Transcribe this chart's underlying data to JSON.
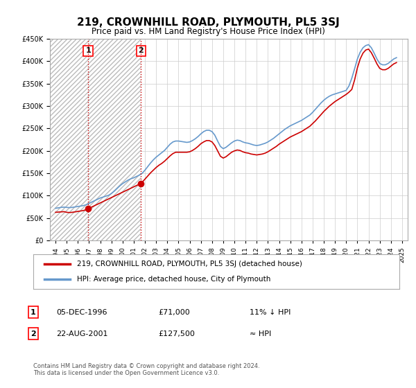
{
  "title": "219, CROWNHILL ROAD, PLYMOUTH, PL5 3SJ",
  "subtitle": "Price paid vs. HM Land Registry's House Price Index (HPI)",
  "transactions": [
    {
      "date": 1996.92,
      "price": 71000,
      "label": "1"
    },
    {
      "date": 2001.64,
      "price": 127500,
      "label": "2"
    }
  ],
  "hpi_dates": [
    1994.0,
    1994.25,
    1994.5,
    1994.75,
    1995.0,
    1995.25,
    1995.5,
    1995.75,
    1996.0,
    1996.25,
    1996.5,
    1996.75,
    1997.0,
    1997.25,
    1997.5,
    1997.75,
    1998.0,
    1998.25,
    1998.5,
    1998.75,
    1999.0,
    1999.25,
    1999.5,
    1999.75,
    2000.0,
    2000.25,
    2000.5,
    2000.75,
    2001.0,
    2001.25,
    2001.5,
    2001.75,
    2002.0,
    2002.25,
    2002.5,
    2002.75,
    2003.0,
    2003.25,
    2003.5,
    2003.75,
    2004.0,
    2004.25,
    2004.5,
    2004.75,
    2005.0,
    2005.25,
    2005.5,
    2005.75,
    2006.0,
    2006.25,
    2006.5,
    2006.75,
    2007.0,
    2007.25,
    2007.5,
    2007.75,
    2008.0,
    2008.25,
    2008.5,
    2008.75,
    2009.0,
    2009.25,
    2009.5,
    2009.75,
    2010.0,
    2010.25,
    2010.5,
    2010.75,
    2011.0,
    2011.25,
    2011.5,
    2011.75,
    2012.0,
    2012.25,
    2012.5,
    2012.75,
    2013.0,
    2013.25,
    2013.5,
    2013.75,
    2014.0,
    2014.25,
    2014.5,
    2014.75,
    2015.0,
    2015.25,
    2015.5,
    2015.75,
    2016.0,
    2016.25,
    2016.5,
    2016.75,
    2017.0,
    2017.25,
    2017.5,
    2017.75,
    2018.0,
    2018.25,
    2018.5,
    2018.75,
    2019.0,
    2019.25,
    2019.5,
    2019.75,
    2020.0,
    2020.25,
    2020.5,
    2020.75,
    2021.0,
    2021.25,
    2021.5,
    2021.75,
    2022.0,
    2022.25,
    2022.5,
    2022.75,
    2023.0,
    2023.25,
    2023.5,
    2023.75,
    2024.0,
    2024.25,
    2024.5
  ],
  "hpi_values": [
    72000,
    73000,
    74000,
    74500,
    74000,
    73500,
    74000,
    75000,
    76000,
    77000,
    78000,
    80000,
    83000,
    86000,
    89000,
    92000,
    95000,
    97000,
    99000,
    101000,
    105000,
    110000,
    116000,
    122000,
    127000,
    131000,
    135000,
    138000,
    140000,
    143000,
    146000,
    150000,
    157000,
    165000,
    173000,
    180000,
    186000,
    191000,
    196000,
    201000,
    208000,
    215000,
    220000,
    222000,
    222000,
    221000,
    220000,
    219000,
    220000,
    223000,
    227000,
    232000,
    238000,
    243000,
    246000,
    246000,
    243000,
    235000,
    222000,
    210000,
    205000,
    208000,
    213000,
    218000,
    222000,
    224000,
    223000,
    220000,
    218000,
    217000,
    215000,
    213000,
    212000,
    213000,
    215000,
    217000,
    220000,
    224000,
    228000,
    233000,
    238000,
    243000,
    248000,
    252000,
    256000,
    259000,
    262000,
    265000,
    268000,
    272000,
    276000,
    280000,
    286000,
    293000,
    300000,
    307000,
    313000,
    318000,
    322000,
    325000,
    327000,
    329000,
    331000,
    333000,
    335000,
    345000,
    362000,
    383000,
    405000,
    420000,
    430000,
    435000,
    437000,
    430000,
    418000,
    405000,
    395000,
    392000,
    392000,
    395000,
    400000,
    405000,
    408000
  ],
  "red_line_dates": [
    1994.0,
    1994.25,
    1994.5,
    1994.75,
    1995.0,
    1995.25,
    1995.5,
    1995.75,
    1996.0,
    1996.25,
    1996.5,
    1996.75,
    1996.92,
    2001.64,
    2001.75,
    2002.0,
    2002.25,
    2002.5,
    2002.75,
    2003.0,
    2003.25,
    2003.5,
    2003.75,
    2004.0,
    2004.25,
    2004.5,
    2004.75,
    2005.0,
    2005.25,
    2005.5,
    2005.75,
    2006.0,
    2006.25,
    2006.5,
    2006.75,
    2007.0,
    2007.25,
    2007.5,
    2007.75,
    2008.0,
    2008.25,
    2008.5,
    2008.75,
    2009.0,
    2009.25,
    2009.5,
    2009.75,
    2010.0,
    2010.25,
    2010.5,
    2010.75,
    2011.0,
    2011.25,
    2011.5,
    2011.75,
    2012.0,
    2012.25,
    2012.5,
    2012.75,
    2013.0,
    2013.25,
    2013.5,
    2013.75,
    2014.0,
    2014.25,
    2014.5,
    2014.75,
    2015.0,
    2015.25,
    2015.5,
    2015.75,
    2016.0,
    2016.25,
    2016.5,
    2016.75,
    2017.0,
    2017.25,
    2017.5,
    2017.75,
    2018.0,
    2018.25,
    2018.5,
    2018.75,
    2019.0,
    2019.25,
    2019.5,
    2019.75,
    2020.0,
    2020.25,
    2020.5,
    2020.75,
    2021.0,
    2021.25,
    2021.5,
    2021.75,
    2022.0,
    2022.25,
    2022.5,
    2022.75,
    2023.0,
    2023.25,
    2023.5,
    2023.75,
    2024.0,
    2024.25,
    2024.5
  ],
  "red_line_values": [
    63000,
    63500,
    64000,
    64500,
    63000,
    62500,
    63000,
    64000,
    65000,
    66000,
    67000,
    69000,
    71000,
    127500,
    130000,
    137000,
    144000,
    151000,
    157000,
    163000,
    168000,
    172000,
    177000,
    183000,
    189000,
    194000,
    197000,
    197000,
    197000,
    197000,
    197000,
    198000,
    201000,
    205000,
    210000,
    216000,
    220000,
    223000,
    223000,
    220000,
    212000,
    200000,
    188000,
    184000,
    187000,
    192000,
    197000,
    200000,
    202000,
    201000,
    198000,
    196000,
    195000,
    193000,
    192000,
    191000,
    192000,
    193000,
    195000,
    198000,
    202000,
    206000,
    210000,
    215000,
    219000,
    223000,
    227000,
    231000,
    234000,
    237000,
    240000,
    243000,
    247000,
    251000,
    255000,
    261000,
    267000,
    274000,
    281000,
    288000,
    294000,
    300000,
    305000,
    310000,
    314000,
    318000,
    322000,
    326000,
    331000,
    337000,
    358000,
    385000,
    405000,
    418000,
    425000,
    427000,
    419000,
    407000,
    394000,
    384000,
    381000,
    381000,
    384000,
    389000,
    394000,
    397000
  ],
  "ylim": [
    0,
    450000
  ],
  "xlim": [
    1993.5,
    2025.5
  ],
  "yticks": [
    0,
    50000,
    100000,
    150000,
    200000,
    250000,
    300000,
    350000,
    400000,
    450000
  ],
  "xticks": [
    1994,
    1995,
    1996,
    1997,
    1998,
    1999,
    2000,
    2001,
    2002,
    2003,
    2004,
    2005,
    2006,
    2007,
    2008,
    2009,
    2010,
    2011,
    2012,
    2013,
    2014,
    2015,
    2016,
    2017,
    2018,
    2019,
    2020,
    2021,
    2022,
    2023,
    2024,
    2025
  ],
  "hpi_color": "#6699cc",
  "red_color": "#cc0000",
  "marker_color": "#cc0000",
  "hatch_color": "#cccccc",
  "grid_color": "#cccccc",
  "background_color": "#ffffff",
  "legend_entries": [
    "219, CROWNHILL ROAD, PLYMOUTH, PL5 3SJ (detached house)",
    "HPI: Average price, detached house, City of Plymouth"
  ],
  "table_rows": [
    {
      "label": "1",
      "date": "05-DEC-1996",
      "price": "£71,000",
      "hpi_rel": "11% ↓ HPI"
    },
    {
      "label": "2",
      "date": "22-AUG-2001",
      "price": "£127,500",
      "hpi_rel": "≈ HPI"
    }
  ],
  "footer": "Contains HM Land Registry data © Crown copyright and database right 2024.\nThis data is licensed under the Open Government Licence v3.0.",
  "dotted_line_1": 1996.92,
  "dotted_line_2": 2001.64
}
